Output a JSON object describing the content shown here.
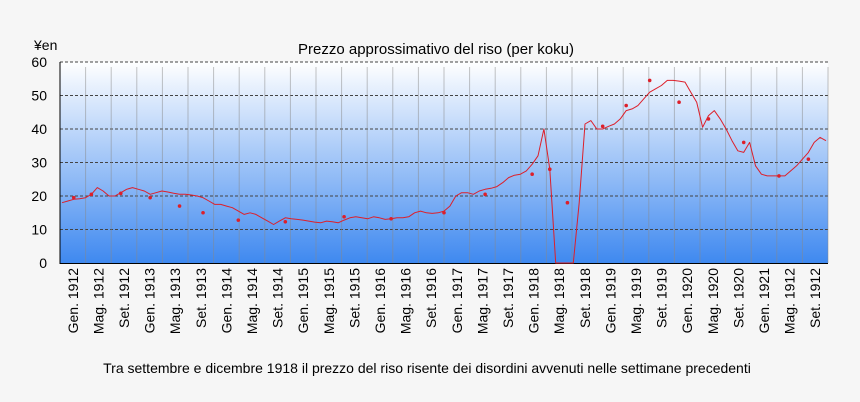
{
  "chart_data": {
    "type": "line",
    "title": "Prezzo approssimativo del riso (per koku)",
    "ylabel": "¥en",
    "caption": "Tra settembre e dicembre 1918 il prezzo del riso risente dei disordini avvenuti nelle settimane precedenti",
    "ylim": [
      0,
      60
    ],
    "yticks": [
      0,
      10,
      20,
      30,
      40,
      50,
      60
    ],
    "grid": true,
    "colors": {
      "line": "#dd1f2a",
      "grid": "#444444",
      "bg_top": "#ffffff",
      "bg_bottom": "#3f89f0"
    },
    "xticks": [
      "Gen. 1912",
      "Mag. 1912",
      "Set. 1912",
      "Gen. 1913",
      "Mag. 1913",
      "Set. 1913",
      "Gen. 1914",
      "Mag. 1914",
      "Set. 1914",
      "Gen. 1915",
      "Mag. 1915",
      "Set. 1915",
      "Gen. 1916",
      "Mag. 1916",
      "Set. 1916",
      "Gen. 1917",
      "Mag. 1917",
      "Set. 1917",
      "Gen. 1918",
      "Mag. 1918",
      "Set. 1918",
      "Gen. 1919",
      "Mag. 1919",
      "Set. 1919",
      "Gen. 1920",
      "Mag. 1920",
      "Set. 1920",
      "Gen. 1921",
      "Mag. 1912",
      "Set. 1912"
    ],
    "series": [
      {
        "values": [
          18.0,
          18.5,
          19.0,
          19.2,
          19.5,
          20.5,
          22.5,
          21.5,
          20.0,
          20.0,
          21.0,
          22.0,
          22.5,
          22.0,
          21.5,
          20.5,
          21.0,
          21.5,
          21.2,
          20.8,
          20.5,
          20.5,
          20.3,
          20.0,
          19.5,
          18.5,
          17.5,
          17.5,
          17.0,
          16.5,
          15.5,
          14.5,
          15.0,
          14.5,
          13.5,
          12.5,
          11.5,
          12.5,
          13.5,
          13.2,
          13.0,
          12.8,
          12.5,
          12.2,
          12.0,
          12.5,
          12.3,
          12.0,
          12.8,
          13.5,
          13.8,
          13.5,
          13.2,
          13.8,
          13.5,
          13.0,
          13.2,
          13.5,
          13.5,
          13.8,
          15.0,
          15.5,
          15.0,
          14.8,
          15.0,
          15.5,
          17.0,
          20.0,
          21.0,
          21.0,
          20.5,
          21.5,
          22.0,
          22.3,
          22.8,
          24.0,
          25.5,
          26.2,
          26.5,
          27.5,
          29.5,
          32.0,
          40.0,
          28.0,
          0,
          0,
          0,
          0,
          18.0,
          41.5,
          42.5,
          40.0,
          40.0,
          40.8,
          41.5,
          43.0,
          45.5,
          46.0,
          47.0,
          49.0,
          51.0,
          52.0,
          53.0,
          54.5,
          54.5,
          54.3,
          54.0,
          51.0,
          48.0,
          40.5,
          44.0,
          45.5,
          43.0,
          40.0,
          36.5,
          33.5,
          33.0,
          36.0,
          29.0,
          26.5,
          26.0,
          26.0,
          26.0,
          26.0,
          27.5,
          29.0,
          31.0,
          33.0,
          36.0,
          37.5,
          36.5
        ],
        "markers": [
          [
            6,
            19.5
          ],
          [
            18,
            20.5
          ],
          [
            33,
            20.8
          ],
          [
            52,
            19.5
          ],
          [
            66,
            17.0
          ],
          [
            80,
            15.0
          ],
          [
            102,
            12.8
          ],
          [
            130,
            12.3
          ],
          [
            163,
            13.8
          ],
          [
            190,
            13.2
          ],
          [
            220,
            15.0
          ],
          [
            245,
            20.5
          ],
          [
            271,
            26.5
          ],
          [
            280,
            28.0
          ],
          [
            291,
            18.0
          ],
          [
            313,
            40.8
          ],
          [
            325,
            47.0
          ],
          [
            340,
            54.5
          ],
          [
            355,
            48.0
          ],
          [
            373,
            43.0
          ],
          [
            392,
            36.0
          ],
          [
            412,
            26.0
          ],
          [
            431,
            31.0
          ]
        ]
      }
    ]
  }
}
